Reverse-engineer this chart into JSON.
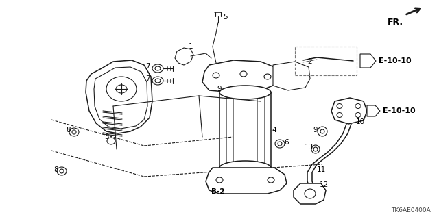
{
  "bg_color": "#ffffff",
  "fig_width": 6.4,
  "fig_height": 3.2,
  "dpi": 100,
  "watermark": "TK6AE0400A",
  "fr_label": "FR.",
  "diagram_color": "#1a1a1a",
  "text_color": "#000000",
  "label_fontsize": 7.5,
  "ref_fontsize": 8.0,
  "watermark_fontsize": 6.5
}
